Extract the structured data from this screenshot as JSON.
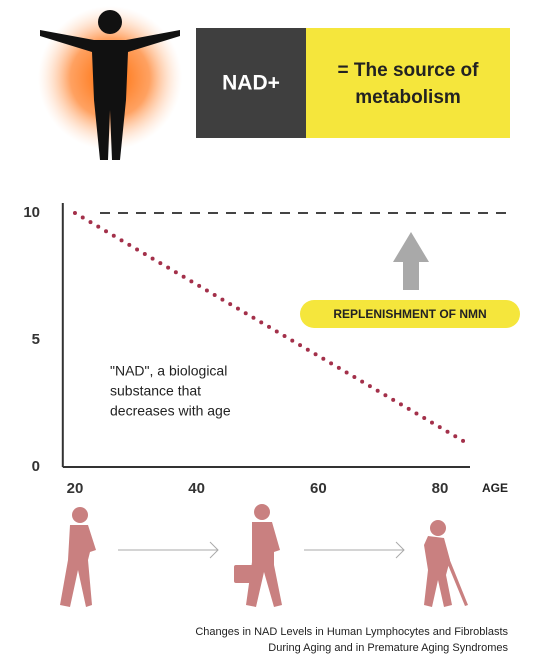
{
  "header": {
    "box_label": "NAD+",
    "box_text": [
      "= The source of",
      "metabolism"
    ]
  },
  "chart_data": {
    "type": "line",
    "x": [
      20,
      84
    ],
    "series": [
      {
        "color": "#a3304a",
        "values": [
          10,
          1
        ]
      }
    ],
    "reference_line": 10,
    "xlim": [
      18,
      88
    ],
    "xticks": [
      20,
      40,
      60,
      80
    ],
    "xlabel": "AGE",
    "ylim": [
      0,
      10
    ],
    "yticks": [
      0,
      5,
      10
    ],
    "annotations": [
      "\"NAD\", a biological",
      "substance that",
      "decreases with age"
    ],
    "callout": "REPLENISHMENT OF NMN"
  },
  "caption": [
    "Changes in NAD Levels in Human Lymphocytes and Fibroblasts",
    "During Aging and in Premature Aging Syndromes"
  ]
}
